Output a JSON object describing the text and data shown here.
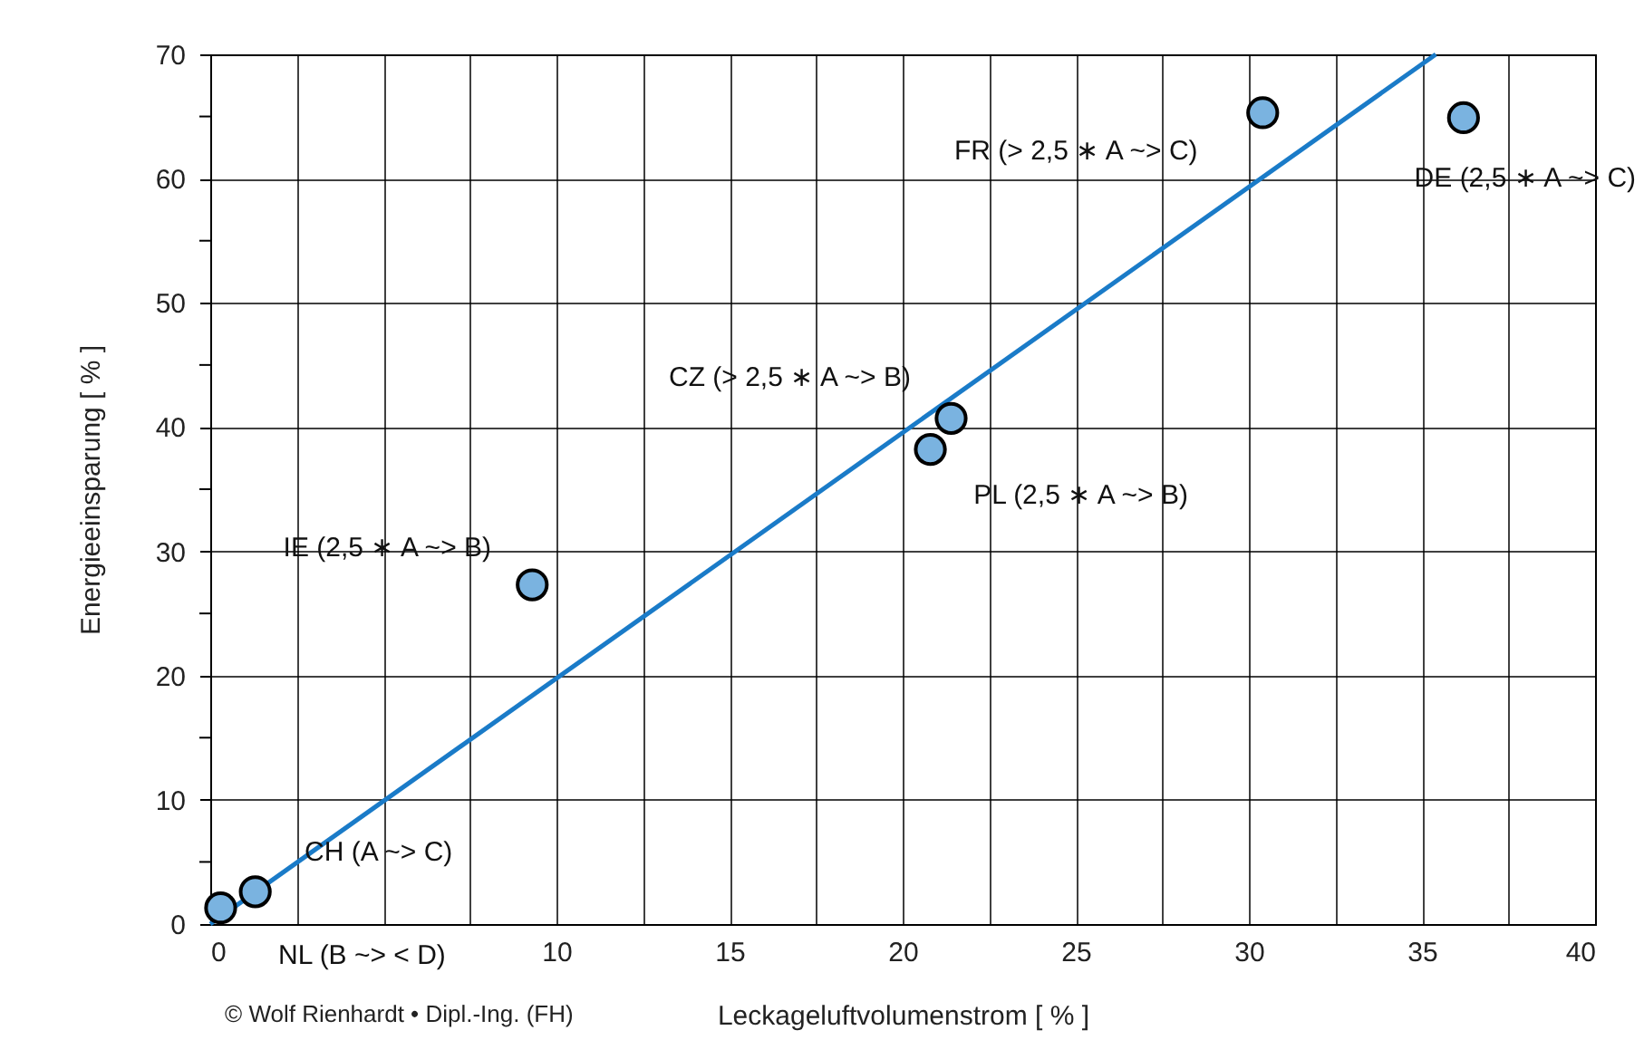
{
  "chart_data": {
    "type": "scatter",
    "xlabel": "Leckageluftvolumenstrom [ % ]",
    "ylabel": "Energieeinsparung [ % ]",
    "x": [
      0.3,
      1.3,
      9.3,
      20.8,
      21.4,
      30.4,
      36.2
    ],
    "series": [
      {
        "color": "#7ab3e0",
        "values": [
          1.3,
          2.6,
          27.3,
          38.2,
          40.7,
          65.3,
          64.9
        ]
      },
      {
        "type": "line",
        "marker": "none",
        "color": "#1a7bc8",
        "x": [
          0,
          35.4
        ],
        "values": [
          0,
          70
        ]
      }
    ],
    "marker": "circle",
    "line_style": "solid",
    "grid": true,
    "xlim": [
      0,
      40
    ],
    "ylim": [
      0,
      70
    ],
    "xticks": [
      0,
      {
        "value": 2.5,
        "label": null
      },
      {
        "value": 5,
        "label": null
      },
      {
        "value": 7.5,
        "label": null
      },
      10,
      {
        "value": 12.5,
        "label": null
      },
      15,
      {
        "value": 17.5,
        "label": null
      },
      20,
      {
        "value": 22.5,
        "label": null
      },
      25,
      {
        "value": 27.5,
        "label": null
      },
      30,
      {
        "value": 32.5,
        "label": null
      },
      35,
      {
        "value": 37.5,
        "label": null
      },
      40
    ],
    "yticks": [
      0,
      {
        "value": 5,
        "label": null
      },
      10,
      {
        "value": 15,
        "label": null
      },
      20,
      {
        "value": 25,
        "label": null
      },
      30,
      {
        "value": 35,
        "label": null
      },
      40,
      {
        "value": 45,
        "label": null
      },
      50,
      {
        "value": 55,
        "label": null
      },
      60,
      {
        "value": 65,
        "label": null
      },
      70
    ],
    "annotations": [
      {
        "text": "NL (B ~> < D)",
        "x": 0.3,
        "y": 1.3
      },
      {
        "text": "CH (A ~> C)",
        "x": 1.3,
        "y": 2.6
      },
      {
        "text": "IE (2,5 ∗ A ~> B)",
        "x": 9.3,
        "y": 27.3
      },
      {
        "text": "PL (2,5 ∗ A ~> B)",
        "x": 20.8,
        "y": 38.2
      },
      {
        "text": "CZ (> 2,5 ∗ A ~> B)",
        "x": 21.4,
        "y": 40.7
      },
      {
        "text": "FR (> 2,5 ∗ A ~> C)",
        "x": 30.4,
        "y": 65.3
      },
      {
        "text": "DE (2,5 ∗ A ~> C)",
        "x": 36.2,
        "y": 64.9
      },
      "© Wolf Rienhardt • Dipl.-Ing. (FH)"
    ]
  }
}
